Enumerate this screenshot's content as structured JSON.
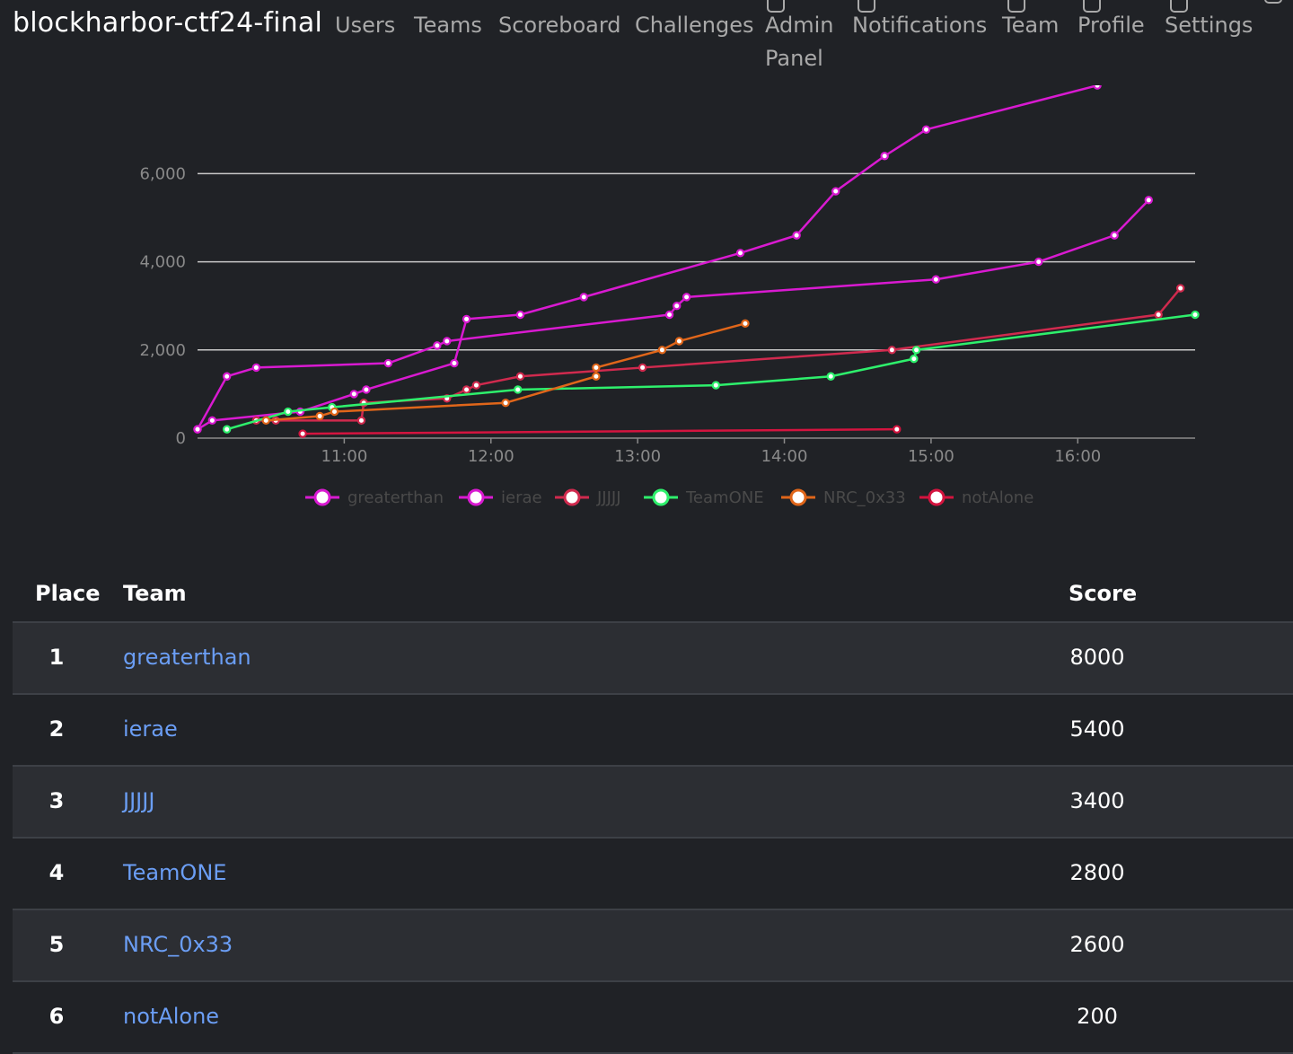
{
  "brand": "blockharbor-ctf24-final",
  "nav": {
    "users": "Users",
    "teams": "Teams",
    "scoreboard": "Scoreboard",
    "challenges": "Challenges",
    "admin_line1": "Admin",
    "admin_line2": "Panel",
    "notifications": "Notifications",
    "team": "Team",
    "profile": "Profile",
    "settings": "Settings"
  },
  "chart_data": {
    "type": "line",
    "title": "",
    "xlabel": "",
    "ylabel": "",
    "x_axis": "time",
    "xlim": [
      "10:00",
      "16:48"
    ],
    "ylim": [
      0,
      7800
    ],
    "y_ticks": [
      "0",
      "2,000",
      "4,000",
      "6,000"
    ],
    "y_tick_values": [
      0,
      2000,
      4000,
      6000
    ],
    "x_ticks": [
      "11:00",
      "12:00",
      "13:00",
      "14:00",
      "15:00",
      "16:00"
    ],
    "grid": "horizontal",
    "legend_position": "bottom",
    "series": [
      {
        "name": "greaterthan",
        "color": "#d91ad1",
        "points": [
          [
            "10:00",
            200
          ],
          [
            "10:06",
            400
          ],
          [
            "10:42",
            600
          ],
          [
            "11:04",
            1000
          ],
          [
            "11:09",
            1100
          ],
          [
            "11:45",
            1700
          ],
          [
            "11:50",
            2700
          ],
          [
            "12:12",
            2800
          ],
          [
            "12:38",
            3200
          ],
          [
            "13:42",
            4200
          ],
          [
            "14:05",
            4600
          ],
          [
            "14:21",
            5600
          ],
          [
            "14:41",
            6400
          ],
          [
            "14:58",
            7000
          ],
          [
            "16:08",
            8000
          ]
        ]
      },
      {
        "name": "ierae",
        "color": "#d91ad1",
        "points": [
          [
            "10:00",
            200
          ],
          [
            "10:12",
            1400
          ],
          [
            "10:24",
            1600
          ],
          [
            "11:18",
            1700
          ],
          [
            "11:38",
            2100
          ],
          [
            "11:42",
            2200
          ],
          [
            "13:13",
            2800
          ],
          [
            "13:16",
            3000
          ],
          [
            "13:20",
            3200
          ],
          [
            "15:02",
            3600
          ],
          [
            "15:44",
            4000
          ],
          [
            "16:15",
            4600
          ],
          [
            "16:29",
            5400
          ]
        ]
      },
      {
        "name": "JJJJJ",
        "color": "#d02a4e",
        "points": [
          [
            "10:24",
            400
          ],
          [
            "10:32",
            400
          ],
          [
            "11:07",
            400
          ],
          [
            "11:08",
            800
          ],
          [
            "11:42",
            900
          ],
          [
            "11:50",
            1100
          ],
          [
            "11:54",
            1200
          ],
          [
            "12:12",
            1400
          ],
          [
            "13:02",
            1600
          ],
          [
            "14:44",
            2000
          ],
          [
            "16:33",
            2800
          ],
          [
            "16:42",
            3400
          ]
        ]
      },
      {
        "name": "TeamONE",
        "color": "#2ef06c",
        "points": [
          [
            "10:12",
            200
          ],
          [
            "10:37",
            600
          ],
          [
            "10:55",
            700
          ],
          [
            "12:11",
            1100
          ],
          [
            "13:32",
            1200
          ],
          [
            "14:19",
            1400
          ],
          [
            "14:53",
            1800
          ],
          [
            "14:54",
            2000
          ],
          [
            "16:48",
            2800
          ]
        ]
      },
      {
        "name": "NRC_0x33",
        "color": "#e0661a",
        "points": [
          [
            "10:28",
            400
          ],
          [
            "10:50",
            500
          ],
          [
            "10:56",
            600
          ],
          [
            "12:06",
            800
          ],
          [
            "12:43",
            1400
          ],
          [
            "12:43",
            1600
          ],
          [
            "13:10",
            2000
          ],
          [
            "13:17",
            2200
          ],
          [
            "13:44",
            2600
          ]
        ]
      },
      {
        "name": "notAlone",
        "color": "#d4143f",
        "points": [
          [
            "10:43",
            100
          ],
          [
            "14:46",
            200
          ]
        ]
      }
    ]
  },
  "table": {
    "headers": {
      "place": "Place",
      "team": "Team",
      "score": "Score"
    },
    "rows": [
      {
        "place": "1",
        "team": "greaterthan",
        "score": "8000"
      },
      {
        "place": "2",
        "team": "ierae",
        "score": "5400"
      },
      {
        "place": "3",
        "team": "JJJJJ",
        "score": "3400"
      },
      {
        "place": "4",
        "team": "TeamONE",
        "score": "2800"
      },
      {
        "place": "5",
        "team": "NRC_0x33",
        "score": "2600"
      },
      {
        "place": "6",
        "team": "notAlone",
        "score": "200"
      }
    ]
  }
}
